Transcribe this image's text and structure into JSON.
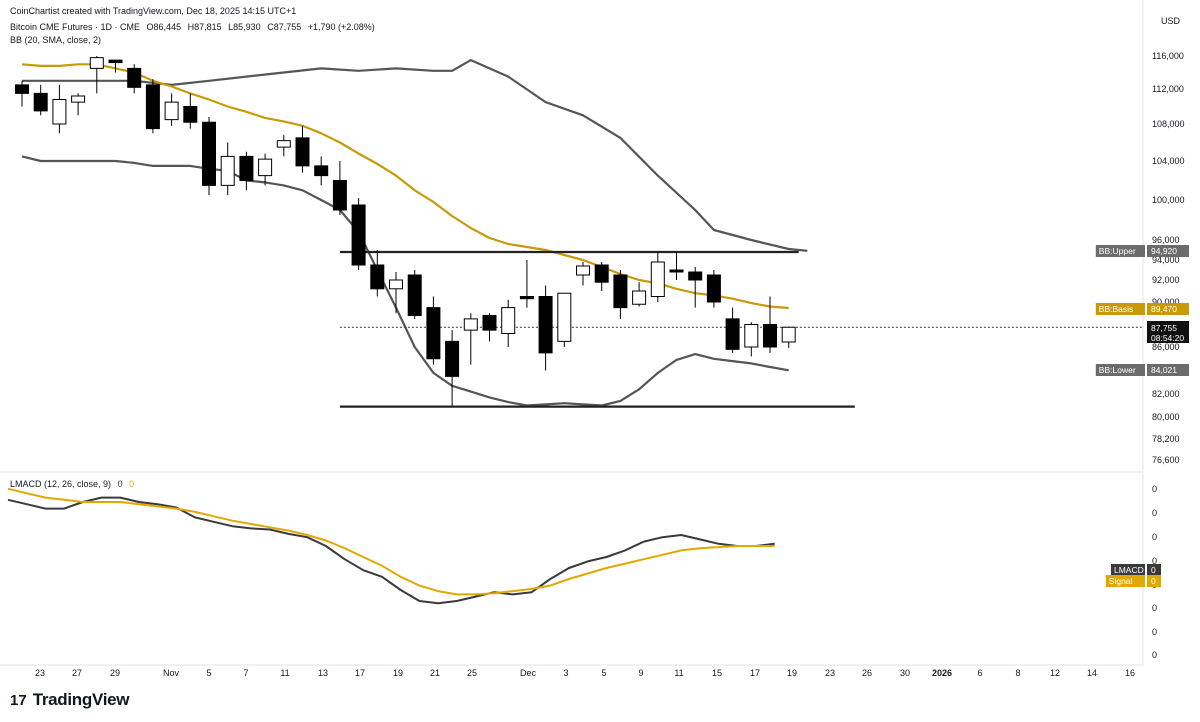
{
  "header": {
    "credit": "CoinChartist created with TradingView.com, Dec 18, 2025 14:15 UTC+1",
    "symbol": "Bitcoin CME Futures · 1D · CME",
    "open": "O86,445",
    "high": "H87,815",
    "low": "L85,930",
    "close": "C87,755",
    "change": "+1,790 (+2.08%)",
    "bb_label": "BB (20, SMA, close, 2)",
    "macd_label": "LMACD (12, 26, close, 9)",
    "macd_val1": "0",
    "macd_val2": "0"
  },
  "currency": "USD",
  "brand": {
    "name": "TradingView",
    "mark": "17"
  },
  "colors": {
    "up_body": "#ffffff",
    "down_body": "#000000",
    "wick": "#000000",
    "bb_band": "#555555",
    "bb_basis": "#c99a06",
    "macd_line": "#3a3a3a",
    "signal_line": "#e0a800",
    "grid": "#f0f3fa",
    "axis_text": "#131722"
  },
  "chart_data": [
    {
      "type": "candlestick",
      "title": "Bitcoin CME Futures · 1D · CME",
      "y_ticks": [
        116000,
        112000,
        108000,
        104000,
        100000,
        96000,
        94000,
        92000,
        90000,
        86000,
        82000,
        80000,
        78200,
        76600
      ],
      "y_tick_labels": [
        "116,000",
        "112,000",
        "108,000",
        "104,000",
        "100,000",
        "96,000",
        "94,000",
        "92,000",
        "90,000",
        "86,000",
        "82,000",
        "80,000",
        "78,200",
        "76,600"
      ],
      "ylim": [
        75500,
        119000
      ],
      "x_tick_labels": [
        "23",
        "27",
        "29",
        "Nov",
        "5",
        "7",
        "11",
        "13",
        "17",
        "19",
        "21",
        "25",
        "Dec",
        "3",
        "5",
        "9",
        "11",
        "15",
        "17",
        "19",
        "23",
        "26",
        "30",
        "2026",
        "6",
        "8",
        "12",
        "14",
        "16"
      ],
      "candles": [
        {
          "o": 112500,
          "h": 113000,
          "l": 110000,
          "c": 111500
        },
        {
          "o": 111500,
          "h": 112500,
          "l": 109000,
          "c": 109500
        },
        {
          "o": 108000,
          "h": 112500,
          "l": 107000,
          "c": 110800
        },
        {
          "o": 110500,
          "h": 111500,
          "l": 109000,
          "c": 111200
        },
        {
          "o": 114500,
          "h": 116000,
          "l": 111500,
          "c": 115800
        },
        {
          "o": 115500,
          "h": 116500,
          "l": 114000,
          "c": 115200
        },
        {
          "o": 114500,
          "h": 115000,
          "l": 111500,
          "c": 112200
        },
        {
          "o": 112500,
          "h": 113200,
          "l": 107000,
          "c": 107500
        },
        {
          "o": 108500,
          "h": 111500,
          "l": 107800,
          "c": 110500
        },
        {
          "o": 110000,
          "h": 111500,
          "l": 107500,
          "c": 108200
        },
        {
          "o": 108200,
          "h": 108800,
          "l": 100500,
          "c": 101500
        },
        {
          "o": 101500,
          "h": 106000,
          "l": 100500,
          "c": 104500
        },
        {
          "o": 104500,
          "h": 105000,
          "l": 101000,
          "c": 102000
        },
        {
          "o": 102500,
          "h": 104800,
          "l": 101500,
          "c": 104200
        },
        {
          "o": 105500,
          "h": 106800,
          "l": 104500,
          "c": 106200
        },
        {
          "o": 106500,
          "h": 107800,
          "l": 102800,
          "c": 103500
        },
        {
          "o": 103500,
          "h": 104500,
          "l": 101500,
          "c": 102500
        },
        {
          "o": 102000,
          "h": 104000,
          "l": 98500,
          "c": 99000
        },
        {
          "o": 99500,
          "h": 100200,
          "l": 93000,
          "c": 93500
        },
        {
          "o": 93500,
          "h": 95000,
          "l": 90500,
          "c": 91200
        },
        {
          "o": 91200,
          "h": 92800,
          "l": 89000,
          "c": 92000
        },
        {
          "o": 92500,
          "h": 93000,
          "l": 88500,
          "c": 88800
        },
        {
          "o": 89500,
          "h": 90500,
          "l": 84500,
          "c": 85000
        },
        {
          "o": 86500,
          "h": 87500,
          "l": 81000,
          "c": 83500
        },
        {
          "o": 87500,
          "h": 89000,
          "l": 84500,
          "c": 88500
        },
        {
          "o": 88800,
          "h": 89000,
          "l": 86500,
          "c": 87500
        },
        {
          "o": 87200,
          "h": 90200,
          "l": 86000,
          "c": 89500
        },
        {
          "o": 90500,
          "h": 94000,
          "l": 89500,
          "c": 90300
        },
        {
          "o": 90500,
          "h": 91500,
          "l": 84000,
          "c": 85500
        },
        {
          "o": 86500,
          "h": 90800,
          "l": 86000,
          "c": 90800
        },
        {
          "o": 92500,
          "h": 93800,
          "l": 91500,
          "c": 93400
        },
        {
          "o": 93500,
          "h": 93800,
          "l": 91000,
          "c": 91800
        },
        {
          "o": 92500,
          "h": 93000,
          "l": 88500,
          "c": 89500
        },
        {
          "o": 89800,
          "h": 91800,
          "l": 89600,
          "c": 91000
        },
        {
          "o": 90500,
          "h": 94800,
          "l": 90000,
          "c": 93800
        },
        {
          "o": 93000,
          "h": 94800,
          "l": 92000,
          "c": 92800
        },
        {
          "o": 92800,
          "h": 93300,
          "l": 89500,
          "c": 92000
        },
        {
          "o": 92500,
          "h": 93000,
          "l": 89500,
          "c": 90000
        },
        {
          "o": 88500,
          "h": 89500,
          "l": 85500,
          "c": 85800
        },
        {
          "o": 86000,
          "h": 88200,
          "l": 85200,
          "c": 88000
        },
        {
          "o": 88000,
          "h": 90500,
          "l": 85500,
          "c": 86000
        },
        {
          "o": 86445,
          "h": 87815,
          "l": 85930,
          "c": 87755
        }
      ],
      "bb_upper": [
        null,
        null,
        null,
        null,
        null,
        null,
        null,
        null,
        null,
        null,
        null,
        null,
        null,
        null,
        null,
        null,
        null,
        null,
        null,
        null,
        null,
        null,
        null,
        null,
        null,
        null,
        null,
        null,
        null,
        null,
        null,
        null,
        null,
        null,
        null,
        null,
        null,
        null,
        null,
        null,
        null,
        null
      ],
      "bb_upper_points": [
        [
          0,
          119000
        ],
        [
          2,
          119000
        ],
        [
          4,
          119000
        ],
        [
          6,
          119000
        ],
        [
          8,
          119500
        ],
        [
          10,
          119000
        ],
        [
          12,
          118500
        ],
        [
          14,
          118000
        ],
        [
          16,
          117500
        ],
        [
          18,
          117800
        ],
        [
          20,
          117500
        ],
        [
          22,
          117800
        ],
        [
          23,
          117800
        ],
        [
          24,
          116500
        ],
        [
          26,
          113500
        ],
        [
          28,
          110500
        ],
        [
          30,
          109000
        ],
        [
          32,
          106500
        ],
        [
          34,
          102500
        ],
        [
          36,
          99000
        ],
        [
          37,
          97000
        ],
        [
          39,
          96000
        ],
        [
          41,
          95100
        ],
        [
          42,
          94920
        ]
      ],
      "bb_basis": [
        115000,
        114800,
        114800,
        115000,
        115000,
        114500,
        114000,
        113000,
        112300,
        111500,
        110800,
        110000,
        109400,
        108700,
        108300,
        107800,
        107000,
        106000,
        104800,
        103700,
        102500,
        101000,
        99800,
        98400,
        97200,
        96200,
        95600,
        95300,
        95000,
        94500,
        94000,
        93300,
        92600,
        92000,
        91700,
        91200,
        90800,
        90600,
        90300,
        89900,
        89600,
        89470
      ],
      "bb_lower": [
        104500,
        104000,
        104000,
        104000,
        104000,
        104000,
        103800,
        103500,
        103500,
        103500,
        103200,
        103000,
        102000,
        101800,
        101500,
        101000,
        100000,
        99000,
        96800,
        93000,
        89500,
        86000,
        83800,
        82700,
        82200,
        81700,
        81300,
        81000,
        81100,
        81200,
        81100,
        81000,
        81400,
        82400,
        83800,
        84900,
        85400,
        85000,
        84800,
        84600,
        84300,
        84021
      ],
      "bands": {
        "upper_label": "BB:Upper",
        "upper": "94,920",
        "basis_label": "BB:Basis",
        "basis": "89,470",
        "lower_label": "BB:Lower",
        "lower": "84,021"
      },
      "last_price": {
        "value": "87,755",
        "countdown": "08:54:20"
      },
      "horizontal_lines": [
        94920,
        81000
      ],
      "range_lines": [
        {
          "name": "resistance",
          "value": 94800,
          "from": 17,
          "to": 41
        },
        {
          "name": "support",
          "value": 80900,
          "from": 17,
          "to": 44
        }
      ]
    },
    {
      "type": "line",
      "title": "LMACD (12, 26, close, 9)",
      "y_tick_labels": [
        "0",
        "0",
        "0",
        "0",
        "0",
        "0",
        "0",
        "0"
      ],
      "series": [
        {
          "name": "LMACD",
          "values": [
            0.82,
            0.78,
            0.74,
            0.74,
            0.8,
            0.84,
            0.84,
            0.8,
            0.78,
            0.75,
            0.66,
            0.62,
            0.58,
            0.56,
            0.55,
            0.51,
            0.48,
            0.4,
            0.28,
            0.18,
            0.12,
            0.0,
            -0.1,
            -0.12,
            -0.1,
            -0.06,
            -0.02,
            -0.04,
            -0.02,
            0.1,
            0.2,
            0.26,
            0.3,
            0.36,
            0.44,
            0.48,
            0.5,
            0.46,
            0.42,
            0.4,
            0.4,
            0.42
          ]
        },
        {
          "name": "Signal",
          "values": [
            0.92,
            0.88,
            0.84,
            0.82,
            0.8,
            0.8,
            0.8,
            0.78,
            0.76,
            0.74,
            0.71,
            0.67,
            0.63,
            0.6,
            0.57,
            0.54,
            0.5,
            0.45,
            0.38,
            0.3,
            0.22,
            0.12,
            0.04,
            -0.01,
            -0.04,
            -0.04,
            -0.03,
            -0.01,
            0.01,
            0.04,
            0.1,
            0.15,
            0.2,
            0.24,
            0.28,
            0.32,
            0.36,
            0.38,
            0.39,
            0.4,
            0.4,
            0.4
          ]
        }
      ],
      "labels": {
        "macd": "LMACD",
        "macd_val": "0",
        "signal": "Signal",
        "signal_val": "0"
      }
    }
  ]
}
